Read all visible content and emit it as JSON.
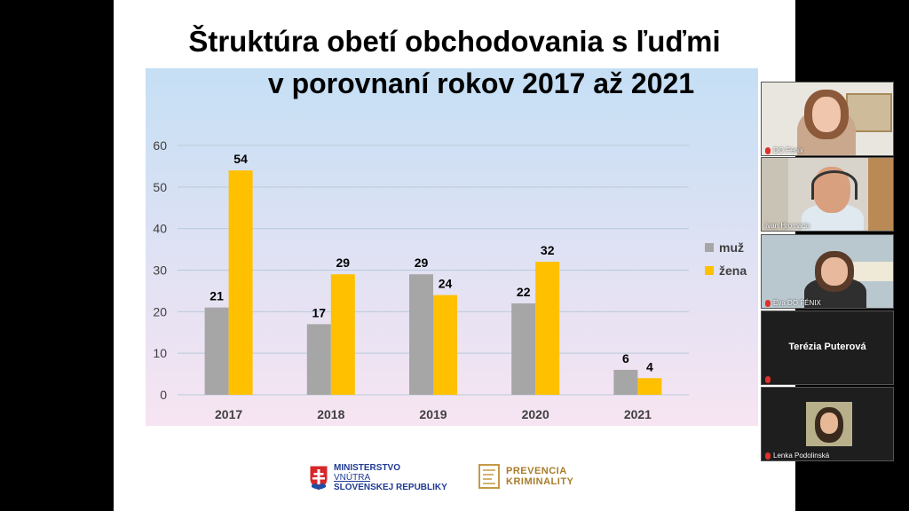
{
  "slide": {
    "title_line1": "Štruktúra obetí obchodovania s ľuďmi",
    "title_line2": "v porovnaní rokov 2017 až 2021"
  },
  "chart_data": {
    "type": "bar",
    "categories": [
      "2017",
      "2018",
      "2019",
      "2020",
      "2021"
    ],
    "series": [
      {
        "name": "muž",
        "values": [
          21,
          17,
          29,
          22,
          6
        ],
        "color": "#a6a6a6"
      },
      {
        "name": "žena",
        "values": [
          54,
          29,
          24,
          32,
          4
        ],
        "color": "#ffc000"
      }
    ],
    "ylim": [
      0,
      60
    ],
    "yticks": [
      0,
      10,
      20,
      30,
      40,
      50,
      60
    ],
    "grid": true,
    "legend": "right",
    "data_labels": true
  },
  "logos": {
    "ministry": [
      "MINISTERSTVO",
      "VNÚTRA",
      "SLOVENSKEJ REPUBLIKY"
    ],
    "prevention": [
      "PREVENCIA",
      "KRIMINALITY"
    ]
  },
  "participants": [
    {
      "name": "DO Fénix",
      "video": true
    },
    {
      "name": "Ivan Hromada",
      "video": true
    },
    {
      "name": "Eva DO FÉNIX",
      "video": true
    },
    {
      "name": "Terézia Puterová",
      "video": false
    },
    {
      "name": "Lenka Podolinská",
      "video": true
    }
  ],
  "colors": {
    "mic_muted": "#e0302c",
    "chart_bg_top": "#c5dff5",
    "chart_bg_bottom": "#f7e4f2"
  }
}
